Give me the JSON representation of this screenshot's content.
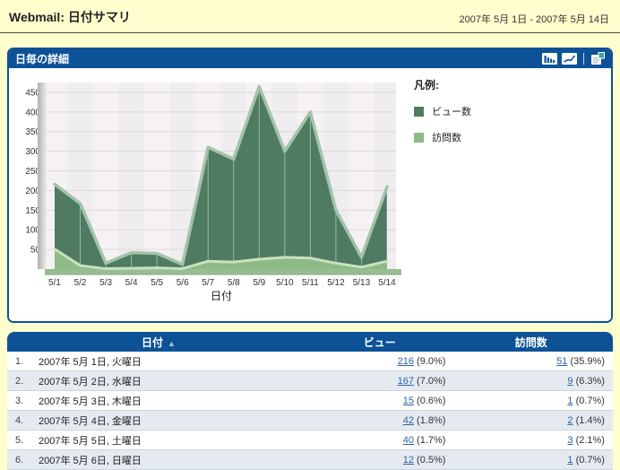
{
  "header": {
    "title": "Webmail: 日付サマリ",
    "date_range": "2007年 5月 1日 - 2007年 5月 14日"
  },
  "panel": {
    "title": "日毎の詳細",
    "toolbar": {
      "bar_icon": "bar-chart-view",
      "line_icon": "line-chart-view",
      "copy_icon": "export-report"
    }
  },
  "chart_data": {
    "type": "area",
    "title": "日毎の詳細",
    "xlabel": "日付",
    "ylabel": "",
    "x": [
      "5/1",
      "5/2",
      "5/3",
      "5/4",
      "5/5",
      "5/6",
      "5/7",
      "5/8",
      "5/9",
      "5/10",
      "5/11",
      "5/12",
      "5/13",
      "5/14"
    ],
    "y_ticks": [
      50,
      100,
      150,
      200,
      250,
      300,
      350,
      400,
      450
    ],
    "ylim": [
      0,
      475
    ],
    "grid": true,
    "legend_title": "凡例:",
    "legend_position": "right",
    "series": [
      {
        "name": "ビュー数",
        "color": "#4E7B61",
        "bevel": "#A3C3AB",
        "values": [
          216,
          167,
          15,
          42,
          40,
          12,
          310,
          280,
          465,
          300,
          400,
          150,
          30,
          210
        ]
      },
      {
        "name": "訪問数",
        "color": "#8CBB85",
        "bevel": "#CBE0C0",
        "values": [
          51,
          9,
          1,
          2,
          3,
          1,
          20,
          18,
          25,
          30,
          28,
          15,
          5,
          20
        ]
      }
    ]
  },
  "table": {
    "columns": [
      {
        "label": "日付",
        "sort_indicator": "▲"
      },
      {
        "label": "ビュー"
      },
      {
        "label": "訪問数"
      }
    ],
    "rows": [
      {
        "num": "1.",
        "date": "2007年 5月 1日, 火曜日",
        "views": "216",
        "views_pct": "(9.0%)",
        "visits": "51",
        "visits_pct": "(35.9%)"
      },
      {
        "num": "2.",
        "date": "2007年 5月 2日, 水曜日",
        "views": "167",
        "views_pct": "(7.0%)",
        "visits": "9",
        "visits_pct": "(6.3%)"
      },
      {
        "num": "3.",
        "date": "2007年 5月 3日, 木曜日",
        "views": "15",
        "views_pct": "(0.6%)",
        "visits": "1",
        "visits_pct": "(0.7%)"
      },
      {
        "num": "4.",
        "date": "2007年 5月 4日, 金曜日",
        "views": "42",
        "views_pct": "(1.8%)",
        "visits": "2",
        "visits_pct": "(1.4%)"
      },
      {
        "num": "5.",
        "date": "2007年 5月 5日, 土曜日",
        "views": "40",
        "views_pct": "(1.7%)",
        "visits": "3",
        "visits_pct": "(2.1%)"
      },
      {
        "num": "6.",
        "date": "2007年 5月 6日, 日曜日",
        "views": "12",
        "views_pct": "(0.5%)",
        "visits": "1",
        "visits_pct": "(0.7%)"
      }
    ]
  },
  "colors": {
    "page_bg": "#FFFFCE",
    "panel_blue": "#0D5296",
    "views_green": "#4E7B61",
    "visits_green": "#8CBB85",
    "row_stripe": "#E5EAF0",
    "link_blue": "#2A64A8",
    "plot_bg": "#F3F0F1"
  }
}
